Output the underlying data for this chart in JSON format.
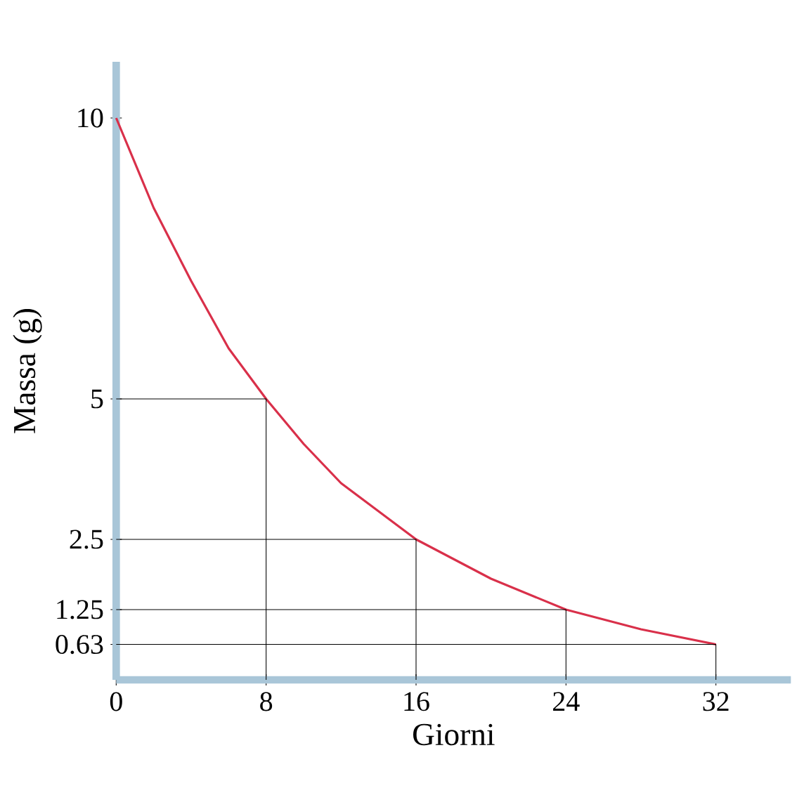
{
  "chart_data": {
    "type": "line",
    "xlabel": "Giorni",
    "ylabel": "Massa (g)",
    "xlim": [
      0,
      36
    ],
    "ylim": [
      0,
      11
    ],
    "xticks": [
      0,
      8,
      16,
      24,
      32
    ],
    "yticks": [
      0.63,
      1.25,
      2.5,
      5,
      10
    ],
    "grid": false,
    "marker": "none",
    "line_style": "solid",
    "series": [
      {
        "color": "#d9304a",
        "x": [
          0,
          2,
          4,
          6,
          8,
          10,
          12,
          14,
          16,
          20,
          24,
          28,
          32
        ],
        "values": [
          10,
          8.4,
          7.1,
          5.9,
          5,
          4.2,
          3.5,
          3.0,
          2.5,
          1.8,
          1.25,
          0.9,
          0.63
        ]
      },
      {
        "color": "#000000",
        "x": [
          0,
          8,
          8
        ],
        "values": [
          5,
          5,
          0
        ]
      },
      {
        "color": "#000000",
        "x": [
          0,
          16,
          16
        ],
        "values": [
          2.5,
          2.5,
          0
        ]
      },
      {
        "color": "#000000",
        "x": [
          0,
          24,
          24
        ],
        "values": [
          1.25,
          1.25,
          0
        ]
      },
      {
        "color": "#000000",
        "x": [
          0,
          32,
          32
        ],
        "values": [
          0.63,
          0.63,
          0
        ]
      }
    ]
  }
}
